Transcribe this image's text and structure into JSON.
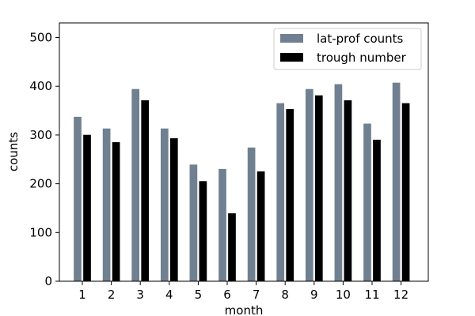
{
  "chart_data": {
    "type": "bar",
    "xlabel": "month",
    "ylabel": "counts",
    "ylim": [
      0,
      530
    ],
    "yticks": [
      0,
      100,
      200,
      300,
      400,
      500
    ],
    "categories": [
      "1",
      "2",
      "3",
      "4",
      "5",
      "6",
      "7",
      "8",
      "9",
      "10",
      "11",
      "12"
    ],
    "series": [
      {
        "name": "lat-prof counts",
        "color": "#708090",
        "values": [
          338,
          314,
          395,
          314,
          240,
          231,
          275,
          366,
          395,
          405,
          324,
          408
        ]
      },
      {
        "name": "trough number",
        "color": "#000000",
        "values": [
          301,
          286,
          372,
          294,
          206,
          140,
          226,
          354,
          382,
          372,
          291,
          366
        ]
      }
    ],
    "legend_position": "top-right",
    "grid": false
  }
}
